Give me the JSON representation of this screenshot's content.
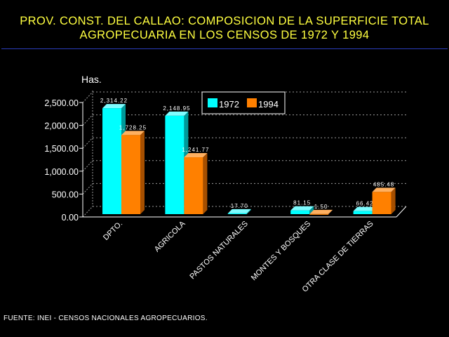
{
  "title_line1": "PROV. CONST. DEL CALLAO: COMPOSICION DE LA SUPERFICIE TOTAL",
  "title_line2": "AGROPECUARIA EN LOS CENSOS DE 1972 Y 1994",
  "source": "FUENTE: INEI - CENSOS NACIONALES AGROPECUARIOS.",
  "chart_data": {
    "type": "bar",
    "ylabel": "Has.",
    "ylim": [
      0,
      2500
    ],
    "yticks": [
      "0.00",
      "500.00",
      "1,000.00",
      "1,500.00",
      "2,000.00",
      "2,500.00"
    ],
    "ytick_values": [
      0,
      500,
      1000,
      1500,
      2000,
      2500
    ],
    "categories": [
      "DPTO.",
      "AGRICOLA",
      "PASTOS NATURALES",
      "MONTES Y BOSQUES",
      "OTRA CLASE DE TIERRAS"
    ],
    "series": [
      {
        "name": "1972",
        "color": "#00ffff",
        "values": [
          2314.22,
          2148.95,
          17.7,
          81.15,
          66.42
        ],
        "labels": [
          "2,314.22",
          "2,148.95",
          "17.70",
          "81.15",
          "66.42"
        ]
      },
      {
        "name": "1994",
        "color": "#ff8000",
        "values": [
          1728.25,
          1241.77,
          0,
          1.5,
          485.48
        ],
        "labels": [
          "1,728.25",
          "1,241.77",
          "",
          "1.50",
          "485.48"
        ]
      }
    ],
    "legend_position": "top-center",
    "grid": true
  }
}
